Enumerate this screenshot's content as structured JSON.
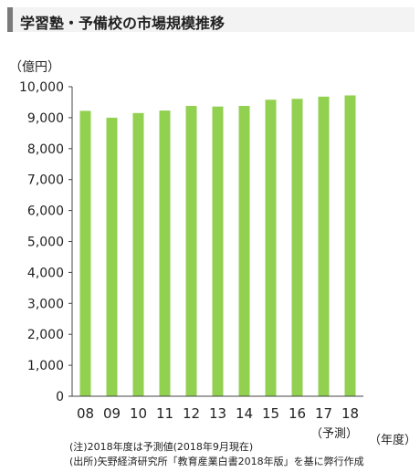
{
  "chart_data": {
    "type": "bar",
    "title": "学習塾・予備校の市場規模推移",
    "ylabel": "（億円）",
    "xlabel": "（年度）",
    "categories": [
      "08",
      "09",
      "10",
      "11",
      "12",
      "13",
      "14",
      "15",
      "16",
      "17",
      "18"
    ],
    "values": [
      9220,
      9000,
      9150,
      9230,
      9380,
      9360,
      9380,
      9580,
      9610,
      9680,
      9720
    ],
    "ylim": [
      0,
      10000
    ],
    "yticks": [
      0,
      1000,
      2000,
      3000,
      4000,
      5000,
      6000,
      7000,
      8000,
      9000,
      10000
    ],
    "ytick_labels": [
      "0",
      "1,000",
      "2,000",
      "3,000",
      "4,000",
      "5,000",
      "6,000",
      "7,000",
      "8,000",
      "9,000",
      "10,000"
    ],
    "forecast_label": "（予測）",
    "bar_color": "#92d050",
    "grid": false
  },
  "notes": [
    "(注)2018年度は予測値(2018年9月現在)",
    "(出所)矢野経済研究所「教育産業白書2018年版」を基に弊行作成"
  ]
}
